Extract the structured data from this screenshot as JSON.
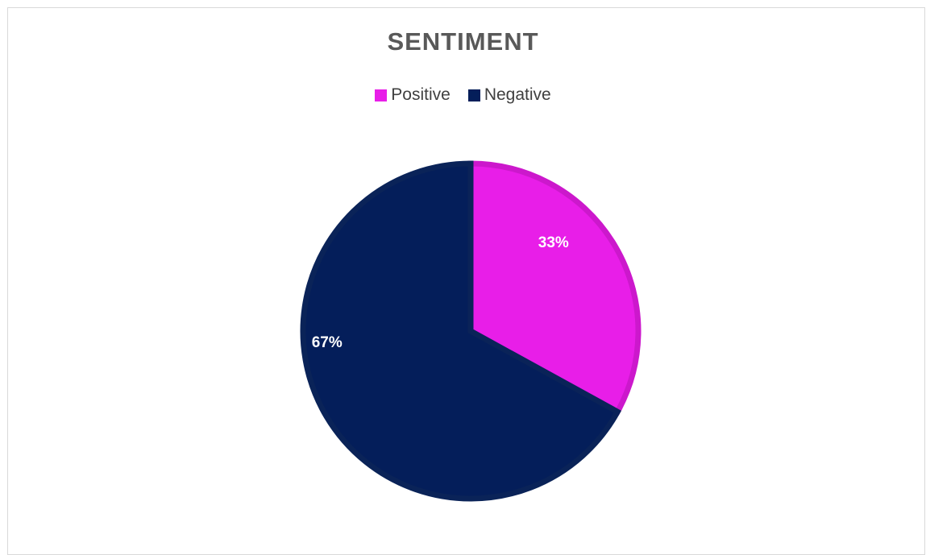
{
  "chart_data": {
    "type": "pie",
    "title": "SENTIMENT",
    "legend_position": "top",
    "categories": [
      "Positive",
      "Negative"
    ],
    "values": [
      33,
      67
    ],
    "labels": [
      "33%",
      "67%"
    ],
    "colors": [
      "#e81ee8",
      "#041e5a"
    ]
  }
}
